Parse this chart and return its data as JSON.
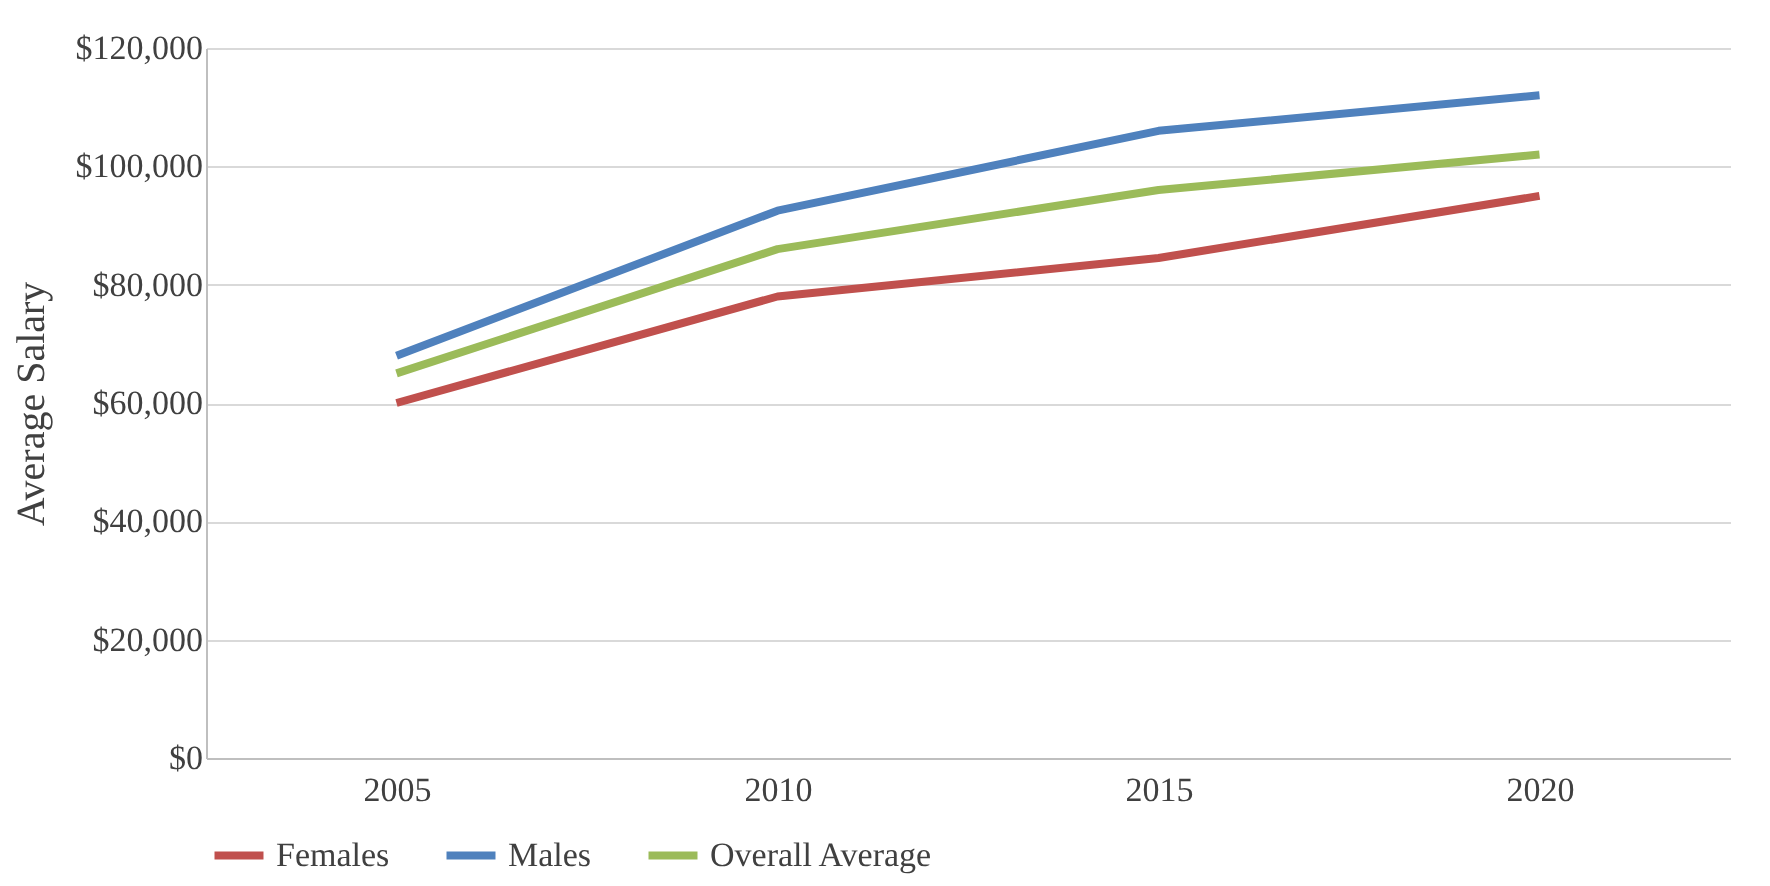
{
  "chart_data": {
    "type": "line",
    "ylabel": "Average Salary",
    "categories": [
      "2005",
      "2010",
      "2015",
      "2020"
    ],
    "series": [
      {
        "name": "Females",
        "color": "#c0504d",
        "values": [
          60000,
          78000,
          84500,
          95000
        ]
      },
      {
        "name": "Males",
        "color": "#4f81bd",
        "values": [
          68000,
          92500,
          106000,
          112000
        ]
      },
      {
        "name": "Overall Average",
        "color": "#9bbb59",
        "values": [
          65000,
          86000,
          96000,
          102000
        ]
      }
    ],
    "ylim": [
      0,
      120000
    ],
    "yticks": [
      {
        "value": 0,
        "label": "$0"
      },
      {
        "value": 20000,
        "label": "$20,000"
      },
      {
        "value": 40000,
        "label": "$40,000"
      },
      {
        "value": 60000,
        "label": "$60,000"
      },
      {
        "value": 80000,
        "label": "$80,000"
      },
      {
        "value": 100000,
        "label": "$100,000"
      },
      {
        "value": 120000,
        "label": "$120,000"
      }
    ],
    "grid": "y",
    "legend": "bottom",
    "marker": "none",
    "line_style": "solid"
  }
}
